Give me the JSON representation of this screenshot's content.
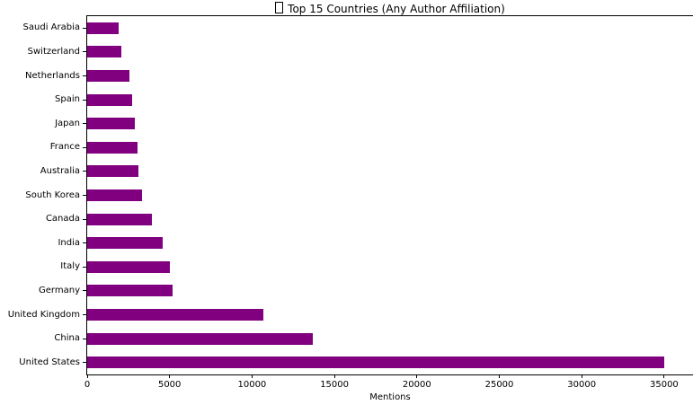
{
  "title": {
    "prefix_glyph": "missing-emoji-tofu-box",
    "text": "Top 15 Countries (Any Author Affiliation)"
  },
  "chart_data": {
    "type": "bar",
    "orientation": "horizontal",
    "title": "Top 15 Countries (Any Author Affiliation)",
    "xlabel": "Mentions",
    "ylabel": "",
    "categories": [
      "Saudi Arabia",
      "Switzerland",
      "Netherlands",
      "Spain",
      "Japan",
      "France",
      "Australia",
      "South Korea",
      "Canada",
      "India",
      "Italy",
      "Germany",
      "United Kingdom",
      "China",
      "United States"
    ],
    "categories_order": "top-to-bottom as displayed (ascending values, largest at bottom)",
    "values": [
      1900,
      2050,
      2550,
      2750,
      2900,
      3050,
      3100,
      3300,
      3900,
      4600,
      5000,
      5200,
      10700,
      13700,
      35000
    ],
    "x_ticks": [
      0,
      5000,
      10000,
      15000,
      20000,
      25000,
      30000,
      35000
    ],
    "xlim": [
      0,
      36750
    ],
    "grid": false,
    "legend": null,
    "bar_color": "#800080",
    "frame": "full box, black spines"
  }
}
